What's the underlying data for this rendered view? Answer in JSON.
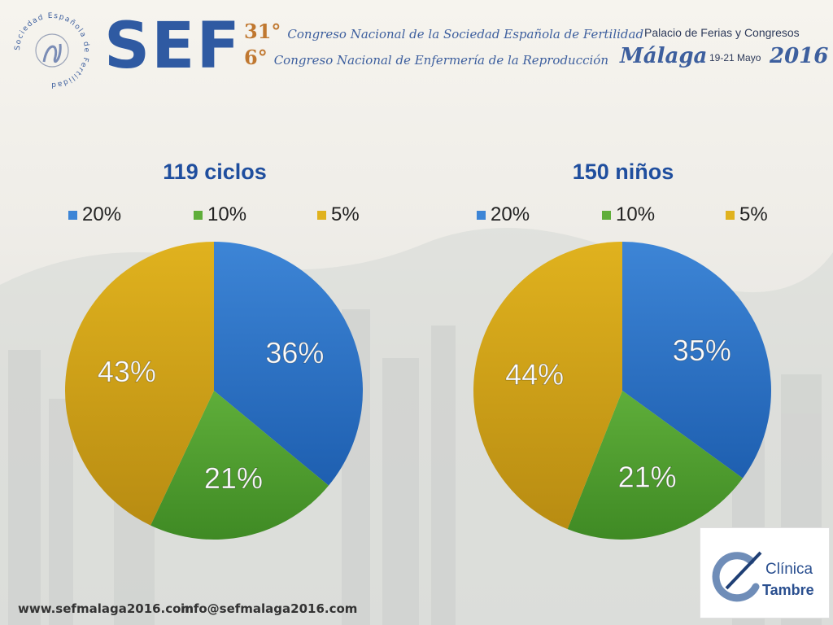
{
  "header": {
    "brand": "SEF",
    "seal_text": "Sociedad Española de Fertilidad",
    "congress_line1_num": "31°",
    "congress_line1": "Congreso Nacional de la Sociedad Española de Fertilidad",
    "congress_line2_num": "6°",
    "congress_line2": "Congreso Nacional de Enfermería de la Reproducción",
    "venue": "Palacio de Ferias y Congresos",
    "city": "Málaga",
    "dates": "19-21 Mayo",
    "year": "2016"
  },
  "footer": {
    "website": "www.sefmalaga2016.com",
    "email": "info@sefmalaga2016.com",
    "logo_line1": "Clínica",
    "logo_line2": "Tambre"
  },
  "colors": {
    "series_20": "#3d85d6",
    "series_10": "#5fae3a",
    "series_5": "#e0b21e",
    "title": "#1f4e9e"
  },
  "chart_data": [
    {
      "type": "pie",
      "title": "119 ciclos",
      "legend_position": "top",
      "categories": [
        "20%",
        "10%",
        "5%"
      ],
      "values": [
        36,
        21,
        43
      ],
      "data_labels": [
        "36%",
        "21%",
        "43%"
      ]
    },
    {
      "type": "pie",
      "title": "150 niños",
      "legend_position": "top",
      "categories": [
        "20%",
        "10%",
        "5%"
      ],
      "values": [
        35,
        21,
        44
      ],
      "data_labels": [
        "35%",
        "21%",
        "44%"
      ]
    }
  ]
}
